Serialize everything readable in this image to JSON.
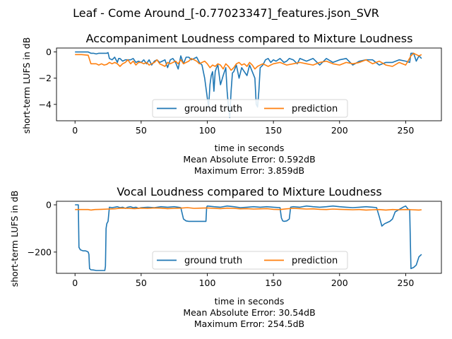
{
  "figure": {
    "suptitle": "Leaf - Come Around_[-0.77023347]_features.json_SVR",
    "colors": {
      "ground_truth": "#1f77b4",
      "prediction": "#ff7f0e"
    }
  },
  "chart_data": [
    {
      "type": "line",
      "title": "Accompaniment Loudness compared to Mixture Loudness",
      "xlabel": "time in seconds",
      "ylabel": "short-term LUFS in dB",
      "stats": [
        "Mean Absolute Error: 0.592dB",
        "Maximum Error: 3.859dB"
      ],
      "xlim": [
        -14,
        277
      ],
      "ylim": [
        -5.25,
        0.3
      ],
      "xticks": [
        0,
        50,
        100,
        150,
        200,
        250
      ],
      "yticks": [
        0,
        -2,
        -4
      ],
      "ytick_labels": [
        "0",
        "−2",
        "−4"
      ],
      "legend": {
        "placement": "lower-center",
        "columns": 2,
        "entries": [
          "ground truth",
          "prediction"
        ]
      },
      "series": [
        {
          "name": "ground truth",
          "x": [
            0,
            10,
            11,
            12,
            14,
            16,
            18,
            20,
            22,
            24,
            25,
            26,
            28,
            30,
            32,
            33,
            34,
            36,
            38,
            40,
            42,
            44,
            46,
            48,
            50,
            52,
            54,
            56,
            58,
            60,
            62,
            64,
            66,
            68,
            70,
            72,
            74,
            76,
            78,
            80,
            82,
            84,
            86,
            88,
            90,
            92,
            94,
            96,
            98,
            100,
            101,
            102,
            103,
            104,
            105,
            106,
            107,
            108,
            110,
            112,
            114,
            115,
            116,
            117,
            118,
            119,
            120,
            122,
            124,
            126,
            128,
            130,
            132,
            134,
            136,
            137,
            138,
            139,
            140,
            142,
            144,
            146,
            148,
            150,
            152,
            155,
            158,
            160,
            162,
            165,
            168,
            170,
            175,
            180,
            185,
            190,
            195,
            200,
            205,
            210,
            215,
            220,
            225,
            230,
            235,
            240,
            245,
            250,
            253,
            254,
            256,
            258,
            260,
            262
          ],
          "values": [
            0,
            0,
            -0.05,
            -0.1,
            -0.1,
            -0.15,
            -0.1,
            -0.1,
            -0.1,
            -0.1,
            -0.05,
            -0.5,
            -0.6,
            -0.4,
            -0.8,
            -0.5,
            -0.5,
            -0.7,
            -0.6,
            -0.6,
            -0.6,
            -0.5,
            -0.8,
            -0.7,
            -0.8,
            -0.6,
            -0.9,
            -0.6,
            -1.0,
            -0.7,
            -0.6,
            -0.8,
            -0.7,
            -0.6,
            -1.2,
            -0.6,
            -0.5,
            -0.8,
            -1.3,
            -0.3,
            -0.9,
            -0.4,
            -0.4,
            -0.6,
            -0.5,
            -0.4,
            -0.8,
            -1.0,
            -2.0,
            -3.5,
            -4.2,
            -2.5,
            -1.8,
            -1.5,
            -3.0,
            -1.5,
            -1.2,
            -1.0,
            -2.5,
            -1.8,
            -1.2,
            -3.0,
            -4.2,
            -5.0,
            -3.0,
            -1.6,
            -1.5,
            -1.0,
            -2.0,
            -1.2,
            -1.5,
            -1.8,
            -1.0,
            -1.5,
            -2.0,
            -4.0,
            -4.2,
            -3.0,
            -1.2,
            -1.0,
            -0.6,
            -0.5,
            -0.8,
            -0.6,
            -0.7,
            -0.5,
            -0.8,
            -0.7,
            -0.5,
            -0.6,
            -0.9,
            -0.5,
            -0.7,
            -0.5,
            -1.0,
            -0.5,
            -0.8,
            -0.6,
            -0.5,
            -1.0,
            -0.7,
            -0.6,
            -0.6,
            -1.0,
            -0.8,
            -0.8,
            -0.6,
            -0.7,
            -0.8,
            -0.1,
            -0.1,
            -0.7,
            -0.3,
            -0.5
          ]
        },
        {
          "name": "prediction",
          "x": [
            0,
            5,
            10,
            12,
            14,
            16,
            18,
            20,
            22,
            24,
            26,
            28,
            30,
            32,
            34,
            36,
            38,
            40,
            42,
            44,
            46,
            48,
            50,
            52,
            54,
            56,
            58,
            60,
            62,
            64,
            66,
            68,
            70,
            72,
            74,
            76,
            78,
            80,
            82,
            84,
            86,
            88,
            90,
            92,
            94,
            96,
            98,
            100,
            102,
            104,
            106,
            108,
            110,
            112,
            114,
            116,
            118,
            120,
            122,
            124,
            126,
            128,
            130,
            132,
            134,
            136,
            138,
            140,
            142,
            144,
            146,
            148,
            150,
            155,
            160,
            165,
            170,
            175,
            180,
            185,
            190,
            195,
            200,
            205,
            210,
            215,
            220,
            225,
            230,
            235,
            240,
            245,
            250,
            254,
            256,
            258,
            260,
            262
          ],
          "values": [
            -0.2,
            -0.2,
            -0.25,
            -0.9,
            -0.9,
            -0.9,
            -1.0,
            -0.9,
            -1.0,
            -0.95,
            -0.8,
            -0.9,
            -0.8,
            -0.9,
            -1.1,
            -0.9,
            -0.8,
            -0.6,
            -0.9,
            -0.7,
            -1.0,
            -0.8,
            -0.8,
            -0.9,
            -0.8,
            -1.0,
            -0.9,
            -0.8,
            -0.6,
            -0.9,
            -1.0,
            -1.1,
            -0.8,
            -0.9,
            -0.8,
            -0.7,
            -0.9,
            -0.6,
            -0.9,
            -0.8,
            -0.7,
            -0.5,
            -0.6,
            -0.7,
            -0.9,
            -0.8,
            -0.7,
            -0.9,
            -1.2,
            -1.0,
            -1.1,
            -0.9,
            -1.0,
            -1.3,
            -0.9,
            -1.1,
            -1.4,
            -1.2,
            -0.9,
            -0.8,
            -1.0,
            -0.9,
            -1.1,
            -0.8,
            -1.0,
            -1.3,
            -1.1,
            -1.0,
            -0.9,
            -1.0,
            -1.1,
            -1.0,
            -0.9,
            -0.8,
            -1.0,
            -0.9,
            -0.8,
            -0.9,
            -1.0,
            -0.8,
            -0.7,
            -0.9,
            -1.0,
            -0.8,
            -0.9,
            -0.8,
            -0.6,
            -0.9,
            -0.7,
            -1.0,
            -1.1,
            -0.8,
            -1.0,
            -0.3,
            -0.1,
            -0.2,
            -0.3,
            -0.2
          ]
        }
      ]
    },
    {
      "type": "line",
      "title": "Vocal Loudness compared to Mixture Loudness",
      "xlabel": "time in seconds",
      "ylabel": "short-term LUFS in dB",
      "stats": [
        "Mean Absolute Error: 30.54dB",
        "Maximum Error: 254.5dB"
      ],
      "xlim": [
        -14,
        277
      ],
      "ylim": [
        -290,
        15
      ],
      "xticks": [
        0,
        50,
        100,
        150,
        200,
        250
      ],
      "yticks": [
        0,
        -200
      ],
      "ytick_labels": [
        "0",
        "−200"
      ],
      "legend": {
        "placement": "lower-center",
        "columns": 2,
        "entries": [
          "ground truth",
          "prediction"
        ]
      },
      "series": [
        {
          "name": "ground truth",
          "x": [
            0,
            2,
            2.5,
            3,
            4,
            6,
            8,
            9,
            10,
            10.5,
            11,
            12,
            14,
            16,
            18,
            20,
            22,
            22.5,
            23,
            23.5,
            24,
            25,
            26,
            28,
            30,
            32,
            34,
            36,
            38,
            40,
            42,
            44,
            46,
            48,
            50,
            55,
            60,
            65,
            70,
            75,
            80,
            82,
            84,
            86,
            88,
            90,
            95,
            99,
            99.5,
            100,
            105,
            110,
            115,
            120,
            125,
            130,
            135,
            140,
            145,
            150,
            155,
            156,
            157,
            158,
            160,
            162,
            163,
            165,
            170,
            175,
            180,
            185,
            190,
            195,
            200,
            205,
            210,
            215,
            220,
            225,
            228,
            230,
            232,
            234,
            236,
            238,
            240,
            242,
            245,
            248,
            250,
            252,
            253,
            253.5,
            254,
            256,
            258,
            260,
            262
          ],
          "values": [
            0,
            0,
            0,
            -180,
            -190,
            -195,
            -195,
            -197,
            -200,
            -210,
            -270,
            -275,
            -276,
            -278,
            -278,
            -278,
            -278,
            -278,
            -260,
            -100,
            -80,
            -70,
            -10,
            -12,
            -10,
            -8,
            -12,
            -10,
            -15,
            -10,
            -8,
            -12,
            -10,
            -15,
            -12,
            -10,
            -12,
            -8,
            -10,
            -8,
            -12,
            -60,
            -68,
            -70,
            -70,
            -70,
            -70,
            -70,
            -10,
            -5,
            -8,
            -10,
            -5,
            -8,
            -12,
            -10,
            -8,
            -10,
            -8,
            -10,
            -12,
            -55,
            -68,
            -70,
            -68,
            -60,
            -10,
            -8,
            -10,
            -5,
            -8,
            -10,
            -8,
            -5,
            -8,
            -10,
            -12,
            -10,
            -8,
            -10,
            -12,
            -50,
            -90,
            -80,
            -75,
            -70,
            -60,
            -30,
            -20,
            -10,
            -5,
            -20,
            -20,
            -150,
            -270,
            -265,
            -255,
            -220,
            -210
          ]
        },
        {
          "name": "prediction",
          "x": [
            0,
            5,
            10,
            12,
            15,
            20,
            25,
            30,
            35,
            40,
            45,
            50,
            55,
            60,
            65,
            70,
            75,
            80,
            85,
            90,
            95,
            100,
            105,
            110,
            115,
            120,
            125,
            130,
            135,
            140,
            145,
            150,
            155,
            160,
            165,
            170,
            175,
            180,
            185,
            190,
            195,
            200,
            205,
            210,
            215,
            220,
            225,
            230,
            235,
            240,
            245,
            250,
            255,
            260,
            262
          ],
          "values": [
            -20,
            -20,
            -20,
            -22,
            -20,
            -19,
            -18,
            -17,
            -14,
            -15,
            -16,
            -14,
            -15,
            -13,
            -14,
            -16,
            -15,
            -14,
            -12,
            -15,
            -14,
            -13,
            -15,
            -16,
            -14,
            -15,
            -17,
            -16,
            -18,
            -17,
            -16,
            -19,
            -20,
            -17,
            -15,
            -16,
            -18,
            -17,
            -19,
            -20,
            -18,
            -19,
            -20,
            -21,
            -20,
            -22,
            -21,
            -20,
            -22,
            -20,
            -21,
            -20,
            -21,
            -22,
            -21
          ]
        }
      ]
    }
  ]
}
